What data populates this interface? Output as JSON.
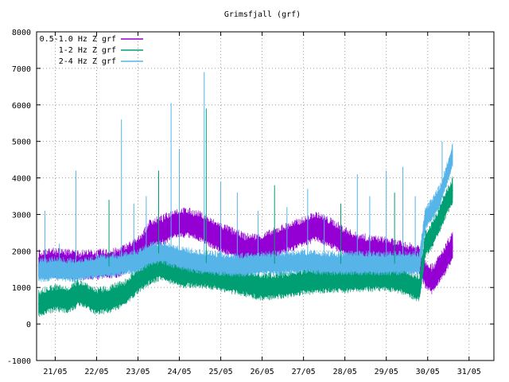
{
  "chart_data": {
    "type": "line",
    "title": "Grimsfjall (grf)",
    "xlabel": "",
    "ylabel": "",
    "ylim": [
      -1000,
      8000
    ],
    "yticks": [
      -1000,
      0,
      1000,
      2000,
      3000,
      4000,
      5000,
      6000,
      7000,
      8000
    ],
    "xlim": [
      20.55,
      31.6
    ],
    "x_unit": "day of May",
    "xticks": [
      {
        "label": "21/05",
        "day": 21
      },
      {
        "label": "22/05",
        "day": 22
      },
      {
        "label": "23/05",
        "day": 23
      },
      {
        "label": "24/05",
        "day": 24
      },
      {
        "label": "25/05",
        "day": 25
      },
      {
        "label": "26/05",
        "day": 26
      },
      {
        "label": "27/05",
        "day": 27
      },
      {
        "label": "28/05",
        "day": 28
      },
      {
        "label": "29/05",
        "day": 29
      },
      {
        "label": "30/05",
        "day": 30
      },
      {
        "label": "31/05",
        "day": 31
      }
    ],
    "grid": true,
    "legend_position": "top-left",
    "series": [
      {
        "name": "0.5-1.0 Hz Z grf",
        "color": "#9400d3",
        "x": [
          20.6,
          21.0,
          21.5,
          22.0,
          22.5,
          23.0,
          23.3,
          23.6,
          23.9,
          24.2,
          24.5,
          24.8,
          25.2,
          25.6,
          26.0,
          26.5,
          27.0,
          27.3,
          27.7,
          28.2,
          28.6,
          29.0,
          29.5,
          29.8,
          29.95,
          30.1,
          30.3,
          30.5,
          30.6
        ],
        "values": [
          1600,
          1650,
          1600,
          1600,
          1650,
          1950,
          2450,
          2550,
          2750,
          2750,
          2650,
          2450,
          2250,
          2050,
          2050,
          2300,
          2500,
          2650,
          2450,
          2100,
          2000,
          1950,
          1800,
          1750,
          1350,
          1200,
          1500,
          1900,
          2100
        ]
      },
      {
        "name": "1-2 Hz Z grf",
        "color": "#009e73",
        "x": [
          20.6,
          21.0,
          21.3,
          21.6,
          22.0,
          22.3,
          22.7,
          23.0,
          23.3,
          23.6,
          24.0,
          24.4,
          24.8,
          25.2,
          25.6,
          26.0,
          26.5,
          27.0,
          27.5,
          28.0,
          28.5,
          29.0,
          29.3,
          29.5,
          29.8,
          29.95,
          30.1,
          30.3,
          30.5,
          30.6
        ],
        "values": [
          550,
          700,
          650,
          850,
          600,
          650,
          850,
          1200,
          1450,
          1550,
          1350,
          1350,
          1300,
          1200,
          1100,
          1000,
          1050,
          1150,
          1200,
          1200,
          1250,
          1250,
          1200,
          1100,
          950,
          2200,
          2400,
          2900,
          3400,
          3650
        ]
      },
      {
        "name": "2-4 Hz Z grf",
        "color": "#56b4e9",
        "x": [
          20.6,
          21.0,
          21.5,
          22.0,
          22.5,
          23.0,
          23.3,
          23.6,
          24.0,
          24.4,
          24.8,
          25.2,
          25.6,
          26.0,
          26.5,
          27.0,
          27.5,
          28.0,
          28.5,
          29.0,
          29.5,
          29.8,
          29.95,
          30.1,
          30.3,
          30.5,
          30.6
        ],
        "values": [
          1450,
          1500,
          1450,
          1550,
          1600,
          1700,
          1900,
          1950,
          1800,
          1700,
          1650,
          1600,
          1600,
          1650,
          1650,
          1700,
          1650,
          1650,
          1650,
          1650,
          1650,
          1650,
          2900,
          3100,
          3500,
          4200,
          4600
        ]
      }
    ],
    "spikes": [
      {
        "day": 20.75,
        "value": 3100
      },
      {
        "day": 21.1,
        "value": 2200
      },
      {
        "day": 21.5,
        "value": 4200
      },
      {
        "day": 22.3,
        "value": 3400
      },
      {
        "day": 22.6,
        "value": 5600
      },
      {
        "day": 22.9,
        "value": 3300
      },
      {
        "day": 23.2,
        "value": 3500
      },
      {
        "day": 23.5,
        "value": 4200
      },
      {
        "day": 23.8,
        "value": 6050
      },
      {
        "day": 24.0,
        "value": 4800
      },
      {
        "day": 24.6,
        "value": 6900
      },
      {
        "day": 24.65,
        "value": 5900
      },
      {
        "day": 25.0,
        "value": 3900
      },
      {
        "day": 25.4,
        "value": 3600
      },
      {
        "day": 25.9,
        "value": 3100
      },
      {
        "day": 26.3,
        "value": 3800
      },
      {
        "day": 26.6,
        "value": 3200
      },
      {
        "day": 27.1,
        "value": 3700
      },
      {
        "day": 27.5,
        "value": 3000
      },
      {
        "day": 27.9,
        "value": 3300
      },
      {
        "day": 28.3,
        "value": 4100
      },
      {
        "day": 28.6,
        "value": 3500
      },
      {
        "day": 29.0,
        "value": 4200
      },
      {
        "day": 29.2,
        "value": 3600
      },
      {
        "day": 29.4,
        "value": 4300
      },
      {
        "day": 29.7,
        "value": 3500
      },
      {
        "day": 30.35,
        "value": 5000
      }
    ]
  }
}
